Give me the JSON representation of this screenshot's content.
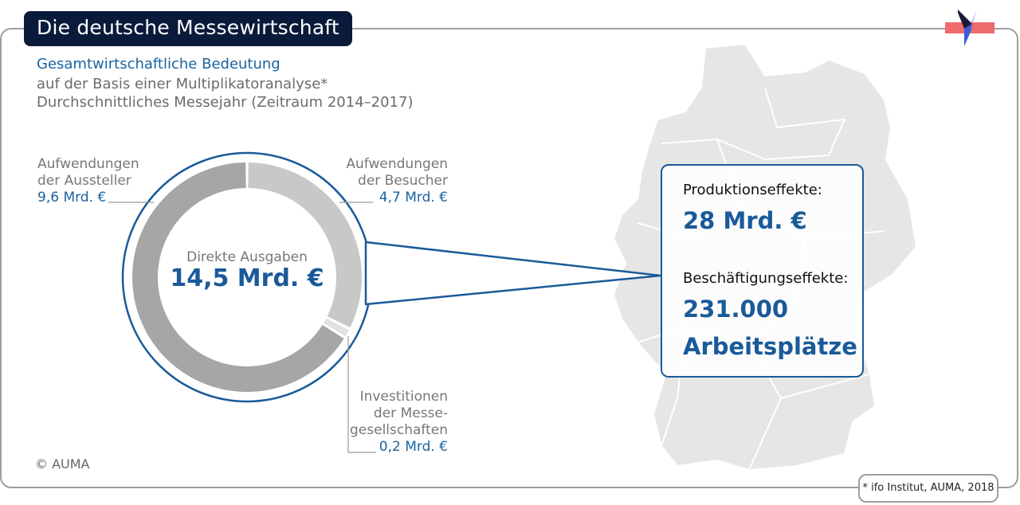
{
  "header": {
    "title": "Die deutsche Messewirtschaft",
    "subtitle_line1": "Gesamtwirtschaftliche Bedeutung",
    "subtitle_line2": "auf der Basis einer Multiplikatoranalyse*",
    "subtitle_line3": "Durchschnittliches Messejahr (Zeitraum 2014–2017)"
  },
  "chart_data": {
    "type": "pie",
    "center_label": "Direkte Ausgaben",
    "center_value": "14,5 Mrd. €",
    "unit": "Mrd. €",
    "slices": [
      {
        "name_line1": "Aufwendungen",
        "name_line2": "der Besucher",
        "value": 4.7,
        "value_text": "4,7 Mrd. €",
        "color": "#c8c8c8"
      },
      {
        "name_line1": "Investitionen",
        "name_line2": "der Messe-",
        "name_line3": "gesellschaften",
        "value": 0.2,
        "value_text": "0,2 Mrd. €",
        "color": "#e2e2e2"
      },
      {
        "name_line1": "Aufwendungen",
        "name_line2": "der Aussteller",
        "value": 9.6,
        "value_text": "9,6 Mrd. €",
        "color": "#a6a6a6"
      }
    ]
  },
  "effects": {
    "production_label": "Produktionseffekte:",
    "production_value": "28 Mrd. €",
    "employment_label": "Beschäftigungseffekte:",
    "employment_value_line1": "231.000",
    "employment_value_line2": "Arbeitsplätze"
  },
  "copyright": "© AUMA",
  "footnote": "* ifo Institut, AUMA, 2018",
  "colors": {
    "accent": "#1a5a9a",
    "title_bg": "#0a1a3a",
    "map": "#e6e6e6"
  }
}
